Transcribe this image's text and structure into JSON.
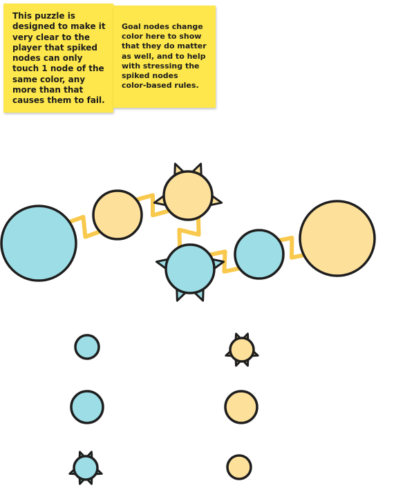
{
  "notes": {
    "left": "This puzzle is\ndesigned to make it\nvery clear to the\nplayer that spiked\nnodes can only\ntouch 1 node of the\nsame color, any\nmore than that\ncauses them to fail.",
    "right": "Goal nodes change\ncolor here to show\nthat they do matter\nas well, and to help\nwith stressing the\nspiked nodes\ncolor-based rules."
  },
  "colors": {
    "blue": "#9cdde6",
    "orange": "#fde09a",
    "outline": "#1e1e1e",
    "link": "#f7c234",
    "sticky": "#fde74c"
  },
  "nodes": [
    {
      "id": "big-blue",
      "color": "blue",
      "spiked": false
    },
    {
      "id": "small-orange",
      "color": "orange",
      "spiked": false
    },
    {
      "id": "top-spiked-orange",
      "color": "orange",
      "spiked": true
    },
    {
      "id": "bottom-spiked-blue",
      "color": "blue",
      "spiked": true
    },
    {
      "id": "mid-blue",
      "color": "blue",
      "spiked": false
    },
    {
      "id": "big-orange",
      "color": "orange",
      "spiked": false
    }
  ],
  "links": [
    [
      "big-blue",
      "small-orange"
    ],
    [
      "small-orange",
      "top-spiked-orange"
    ],
    [
      "top-spiked-orange",
      "bottom-spiked-blue"
    ],
    [
      "bottom-spiked-blue",
      "mid-blue"
    ],
    [
      "mid-blue",
      "big-orange"
    ]
  ],
  "legend": {
    "blue_column": [
      {
        "id": "legend-blue-small",
        "color": "blue",
        "spiked": false
      },
      {
        "id": "legend-blue-medium",
        "color": "blue",
        "spiked": false
      },
      {
        "id": "legend-blue-spiked",
        "color": "blue",
        "spiked": true
      }
    ],
    "orange_column": [
      {
        "id": "legend-orange-spiked",
        "color": "orange",
        "spiked": true
      },
      {
        "id": "legend-orange-medium",
        "color": "orange",
        "spiked": false
      },
      {
        "id": "legend-orange-small",
        "color": "orange",
        "spiked": false
      }
    ]
  }
}
